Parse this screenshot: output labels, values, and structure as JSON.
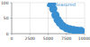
{
  "chart_data": {
    "type": "scatter",
    "x": [
      5500,
      5700,
      6000,
      6300,
      6600,
      7000,
      7500,
      8000,
      8500,
      9000,
      9500
    ],
    "series": [
      {
        "name": "Measured",
        "color": "#3a8fd0",
        "values": [
          95,
          80,
          60,
          45,
          35,
          25,
          18,
          14,
          12,
          10,
          9
        ]
      }
    ],
    "xlim": [
      0,
      10000
    ],
    "xticks": [
      0,
      2500,
      5000,
      7500,
      10000
    ],
    "ylim": [
      0,
      100
    ],
    "yticks": [
      0,
      50,
      100
    ],
    "grid": true,
    "legend": "upper right",
    "marker": "circle"
  }
}
